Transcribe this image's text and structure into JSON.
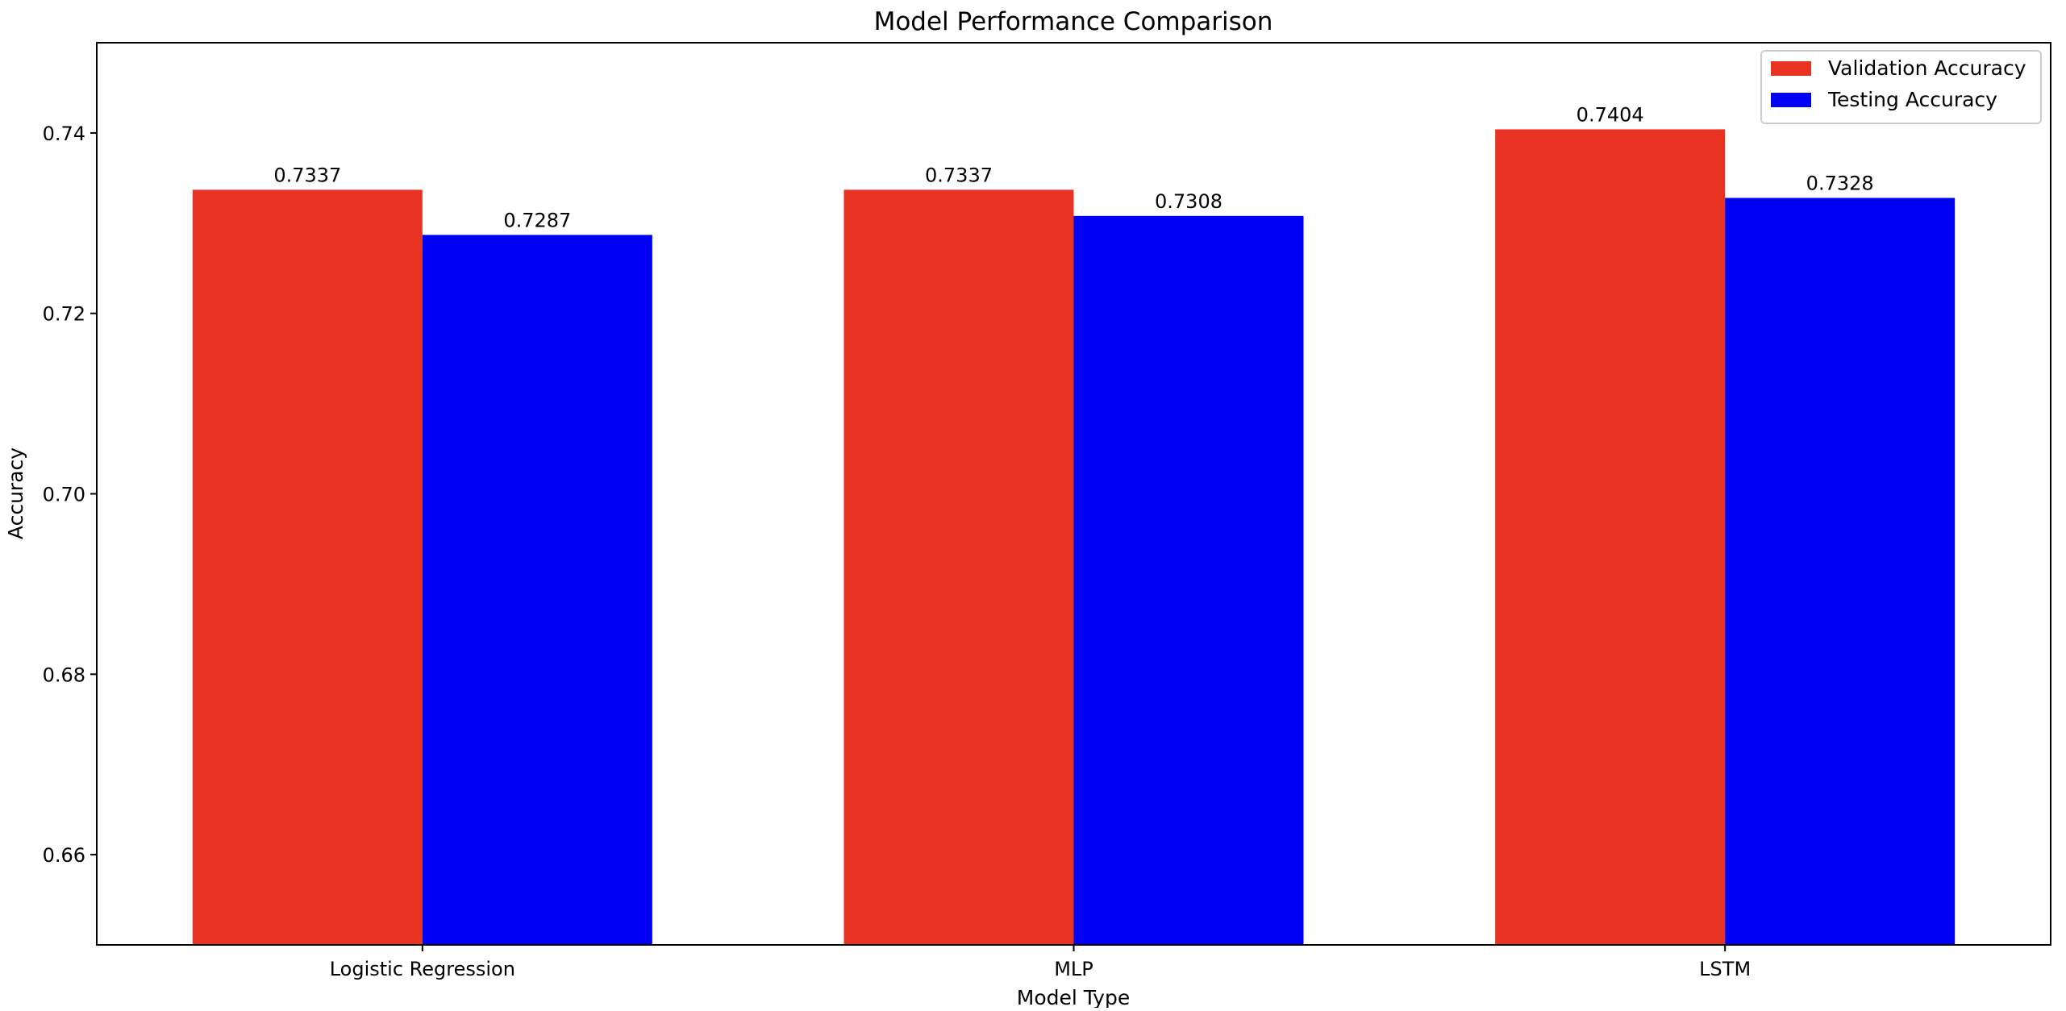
{
  "chart_data": {
    "type": "bar",
    "title": "Model Performance Comparison",
    "xlabel": "Model Type",
    "ylabel": "Accuracy",
    "categories": [
      "Logistic Regression",
      "MLP",
      "LSTM"
    ],
    "series": [
      {
        "name": "Validation Accuracy",
        "color": "#e83222",
        "values": [
          0.7337,
          0.7337,
          0.7404
        ],
        "labels": [
          "0.7337",
          "0.7337",
          "0.7404"
        ]
      },
      {
        "name": "Testing Accuracy",
        "color": "#0000f5",
        "values": [
          0.7287,
          0.7308,
          0.7328
        ],
        "labels": [
          "0.7287",
          "0.7308",
          "0.7328"
        ]
      }
    ],
    "ylim": [
      0.65,
      0.75
    ],
    "yticks": [
      0.66,
      0.68,
      0.7,
      0.72,
      0.74
    ],
    "ytick_labels": [
      "0.66",
      "0.68",
      "0.70",
      "0.72",
      "0.74"
    ],
    "grid": false,
    "legend_position": "top-right"
  }
}
